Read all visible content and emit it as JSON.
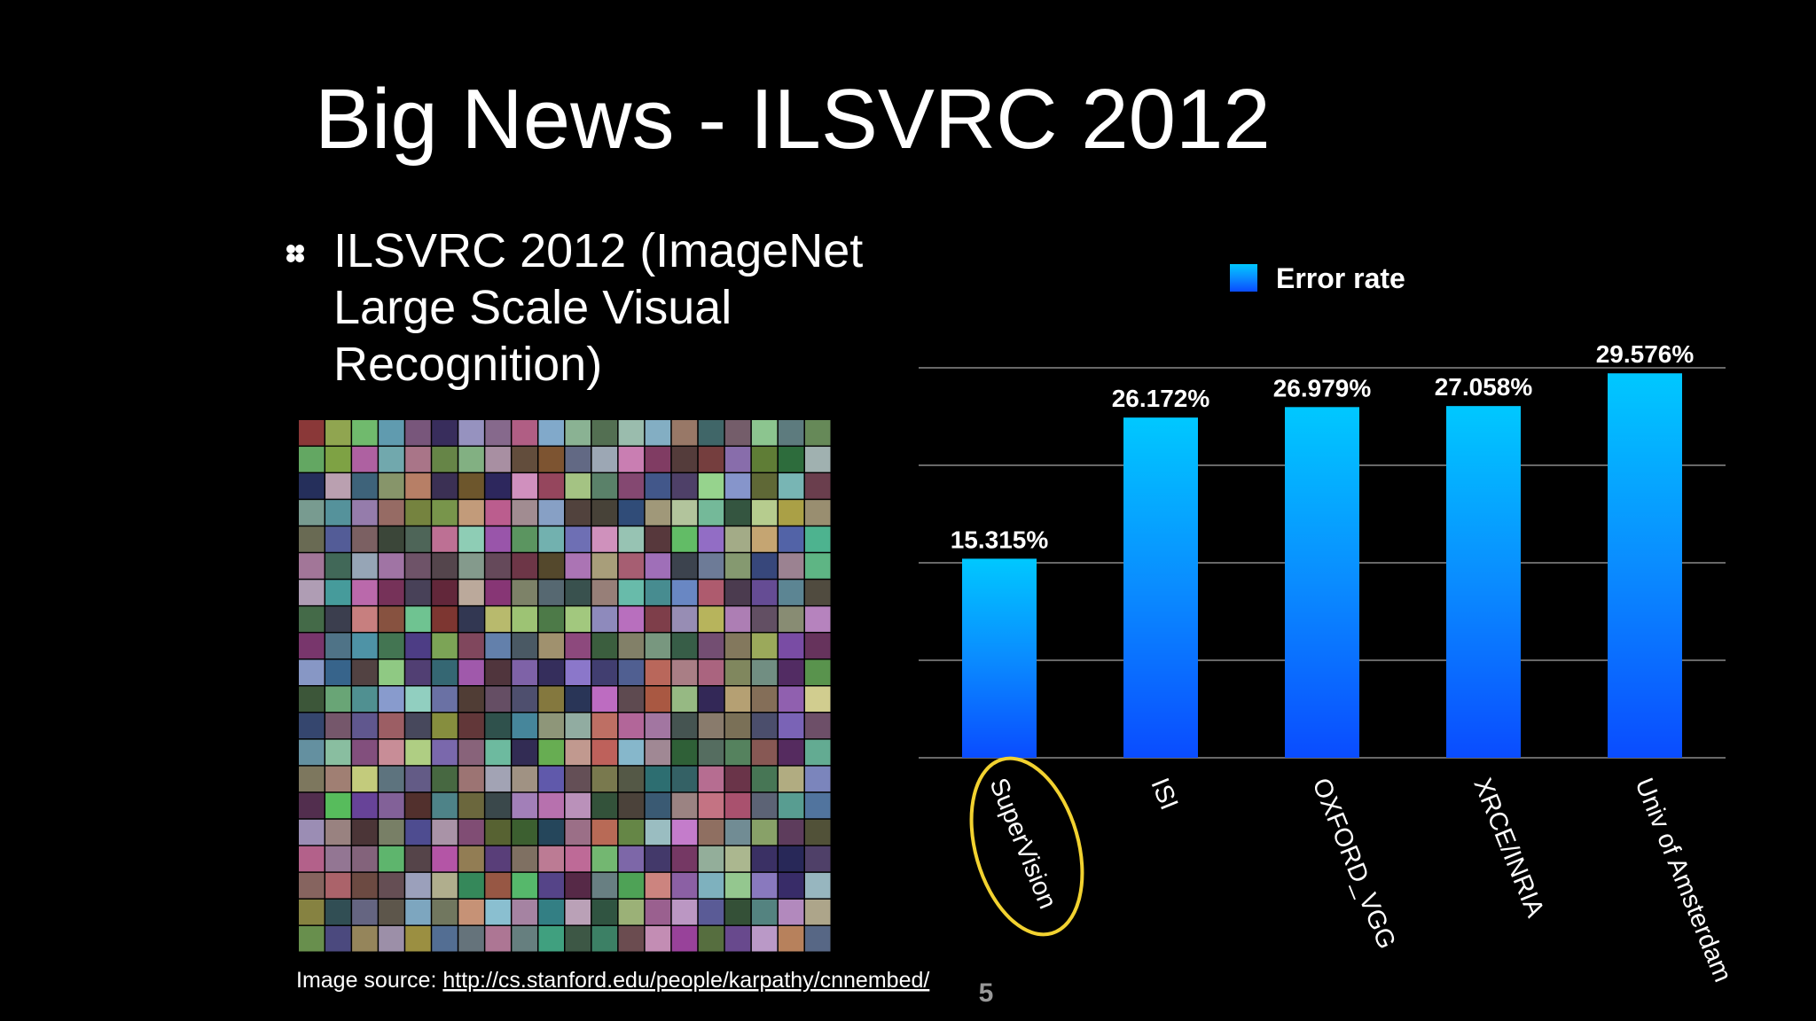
{
  "slide": {
    "title": "Big News - ILSVRC 2012",
    "bullet_lines": [
      "ILSVRC 2012 (ImageNet",
      "Large Scale Visual",
      "Recognition)"
    ],
    "source_label": "Image source: ",
    "source_url": "http://cs.stanford.edu/people/karpathy/cnnembed/",
    "page_number": 5
  },
  "chart_data": {
    "type": "bar",
    "categories": [
      "SuperVision",
      "ISI",
      "OXFORD_VGG",
      "XRCE/INRIA",
      "Univ of Amsterdam"
    ],
    "series": [
      {
        "name": "Error rate",
        "color": "#0a8cff",
        "values": [
          15.315,
          26.172,
          26.979,
          27.058,
          29.576
        ],
        "value_labels": [
          "15.315%",
          "26.172%",
          "26.979%",
          "27.058%",
          "29.576%"
        ]
      }
    ],
    "ylim": [
      0,
      30
    ],
    "yticks": [
      0,
      7.5,
      15,
      22.5,
      30
    ],
    "grid": true,
    "legend": "top"
  }
}
